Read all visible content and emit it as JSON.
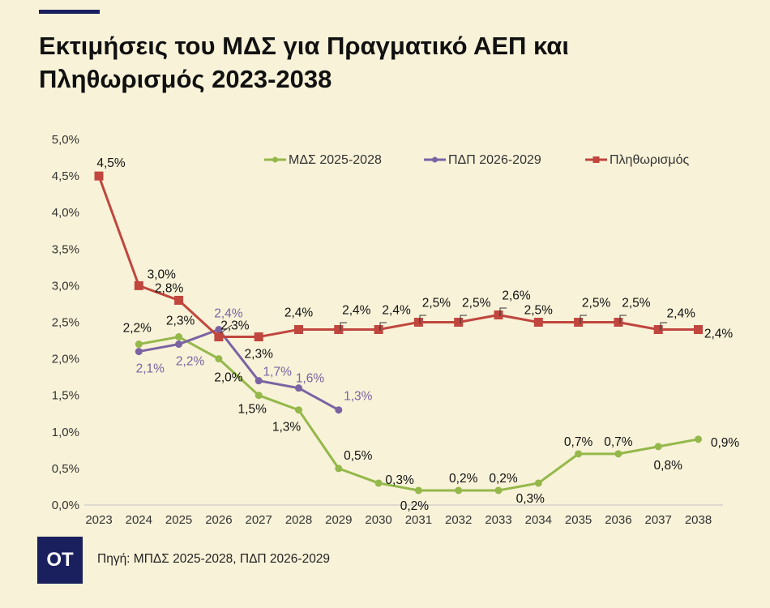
{
  "header": {
    "title_line1": "Εκτιμήσεις του ΜΔΣ για Πραγματικό ΑΕΠ και",
    "title_line2": "Πληθωρισμός 2023-2038"
  },
  "footer": {
    "logo_text": "OT",
    "source": "Πηγή: ΜΠΔΣ 2025-2028, ΠΔΠ 2026-2029"
  },
  "colors": {
    "background": "#f8f2d8",
    "mds": "#94b84a",
    "pdp": "#7b63a3",
    "inflation": "#c0463e",
    "brand": "#1a1f5e"
  },
  "chart_data": {
    "type": "line",
    "title": "Εκτιμήσεις του ΜΔΣ για Πραγματικό ΑΕΠ και Πληθωρισμός 2023-2038",
    "x": [
      "2023",
      "2024",
      "2025",
      "2026",
      "2027",
      "2028",
      "2029",
      "2030",
      "2031",
      "2032",
      "2033",
      "2034",
      "2035",
      "2036",
      "2037",
      "2038"
    ],
    "ylim": [
      0,
      5
    ],
    "yticks": [
      "0,0%",
      "0,5%",
      "1,0%",
      "1,5%",
      "2,0%",
      "2,5%",
      "3,0%",
      "3,5%",
      "4,0%",
      "4,5%",
      "5,0%"
    ],
    "grid": false,
    "legend_position": "top-right",
    "series": [
      {
        "name": "ΜΔΣ 2025-2028",
        "color": "#94b84a",
        "marker": "circle",
        "values": [
          null,
          2.2,
          2.3,
          2.0,
          1.5,
          1.3,
          0.5,
          0.3,
          0.2,
          0.2,
          0.2,
          0.3,
          0.7,
          0.7,
          0.8,
          0.9
        ],
        "labels": [
          null,
          "2,2%",
          "2,3%",
          "2,0%",
          "1,5%",
          "1,3%",
          "0,5%",
          "0,3%",
          "0,2%",
          "0,2%",
          "0,2%",
          "0,3%",
          "0,7%",
          "0,7%",
          "0,8%",
          "0,9%"
        ]
      },
      {
        "name": "ΠΔΠ 2026-2029",
        "color": "#7b63a3",
        "marker": "circle",
        "values": [
          null,
          2.1,
          2.2,
          2.4,
          1.7,
          1.6,
          1.3,
          null,
          null,
          null,
          null,
          null,
          null,
          null,
          null,
          null
        ],
        "labels": [
          null,
          "2,1%",
          "2,2%",
          "2,4%",
          "1,7%",
          "1,6%",
          "1,3%",
          null,
          null,
          null,
          null,
          null,
          null,
          null,
          null,
          null
        ]
      },
      {
        "name": "Πληθωρισμός",
        "color": "#c0463e",
        "marker": "square",
        "values": [
          4.5,
          3.0,
          2.8,
          2.3,
          2.3,
          2.4,
          2.4,
          2.4,
          2.5,
          2.5,
          2.6,
          2.5,
          2.5,
          2.5,
          2.4,
          2.4
        ],
        "labels": [
          "4,5%",
          "3,0%",
          "2,8%",
          "2,3%",
          "2,3%",
          "2,4%",
          "2,4%",
          "2,4%",
          "2,5%",
          "2,5%",
          "2,6%",
          "2,5%",
          "2,5%",
          "2,5%",
          "2,4%",
          "2,4%"
        ]
      }
    ]
  }
}
